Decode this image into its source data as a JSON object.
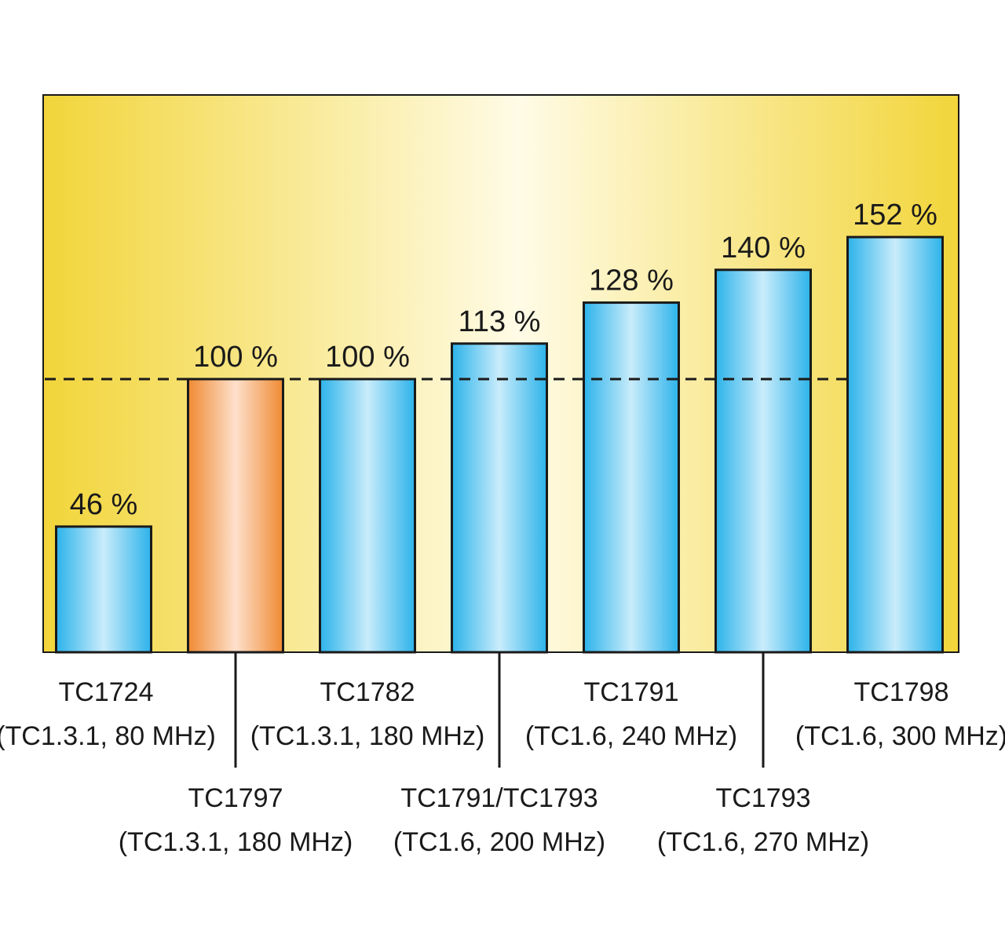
{
  "chart_data": {
    "type": "bar",
    "title": "",
    "xlabel": "",
    "ylabel": "",
    "ylim": [
      0,
      160
    ],
    "reference_line": 100,
    "colors": {
      "background_edge": "#f2d53a",
      "background_center": "#fffbe6",
      "bar_blue_edge": "#2cb3ea",
      "bar_blue_center": "#c9ecfb",
      "bar_orange_edge": "#f08a32",
      "bar_orange_center": "#fde0cc",
      "outline": "#1a1a1a"
    },
    "bars": [
      {
        "name": "TC1724",
        "detail": "(TC1.3.1, 80 MHz)",
        "value": 46,
        "label": "46 %",
        "highlight": false,
        "label_row": "top"
      },
      {
        "name": "TC1797",
        "detail": "(TC1.3.1, 180 MHz)",
        "value": 100,
        "label": "100 %",
        "highlight": true,
        "label_row": "bottom"
      },
      {
        "name": "TC1782",
        "detail": "(TC1.3.1, 180 MHz)",
        "value": 100,
        "label": "100 %",
        "highlight": false,
        "label_row": "top"
      },
      {
        "name": "TC1791/TC1793",
        "detail": "(TC1.6, 200 MHz)",
        "value": 113,
        "label": "113 %",
        "highlight": false,
        "label_row": "bottom"
      },
      {
        "name": "TC1791",
        "detail": "(TC1.6, 240 MHz)",
        "value": 128,
        "label": "128 %",
        "highlight": false,
        "label_row": "top"
      },
      {
        "name": "TC1793",
        "detail": "(TC1.6, 270 MHz)",
        "value": 140,
        "label": "140 %",
        "highlight": false,
        "label_row": "bottom"
      },
      {
        "name": "TC1798",
        "detail": "(TC1.6, 300 MHz)",
        "value": 152,
        "label": "152 %",
        "highlight": false,
        "label_row": "top"
      }
    ]
  }
}
